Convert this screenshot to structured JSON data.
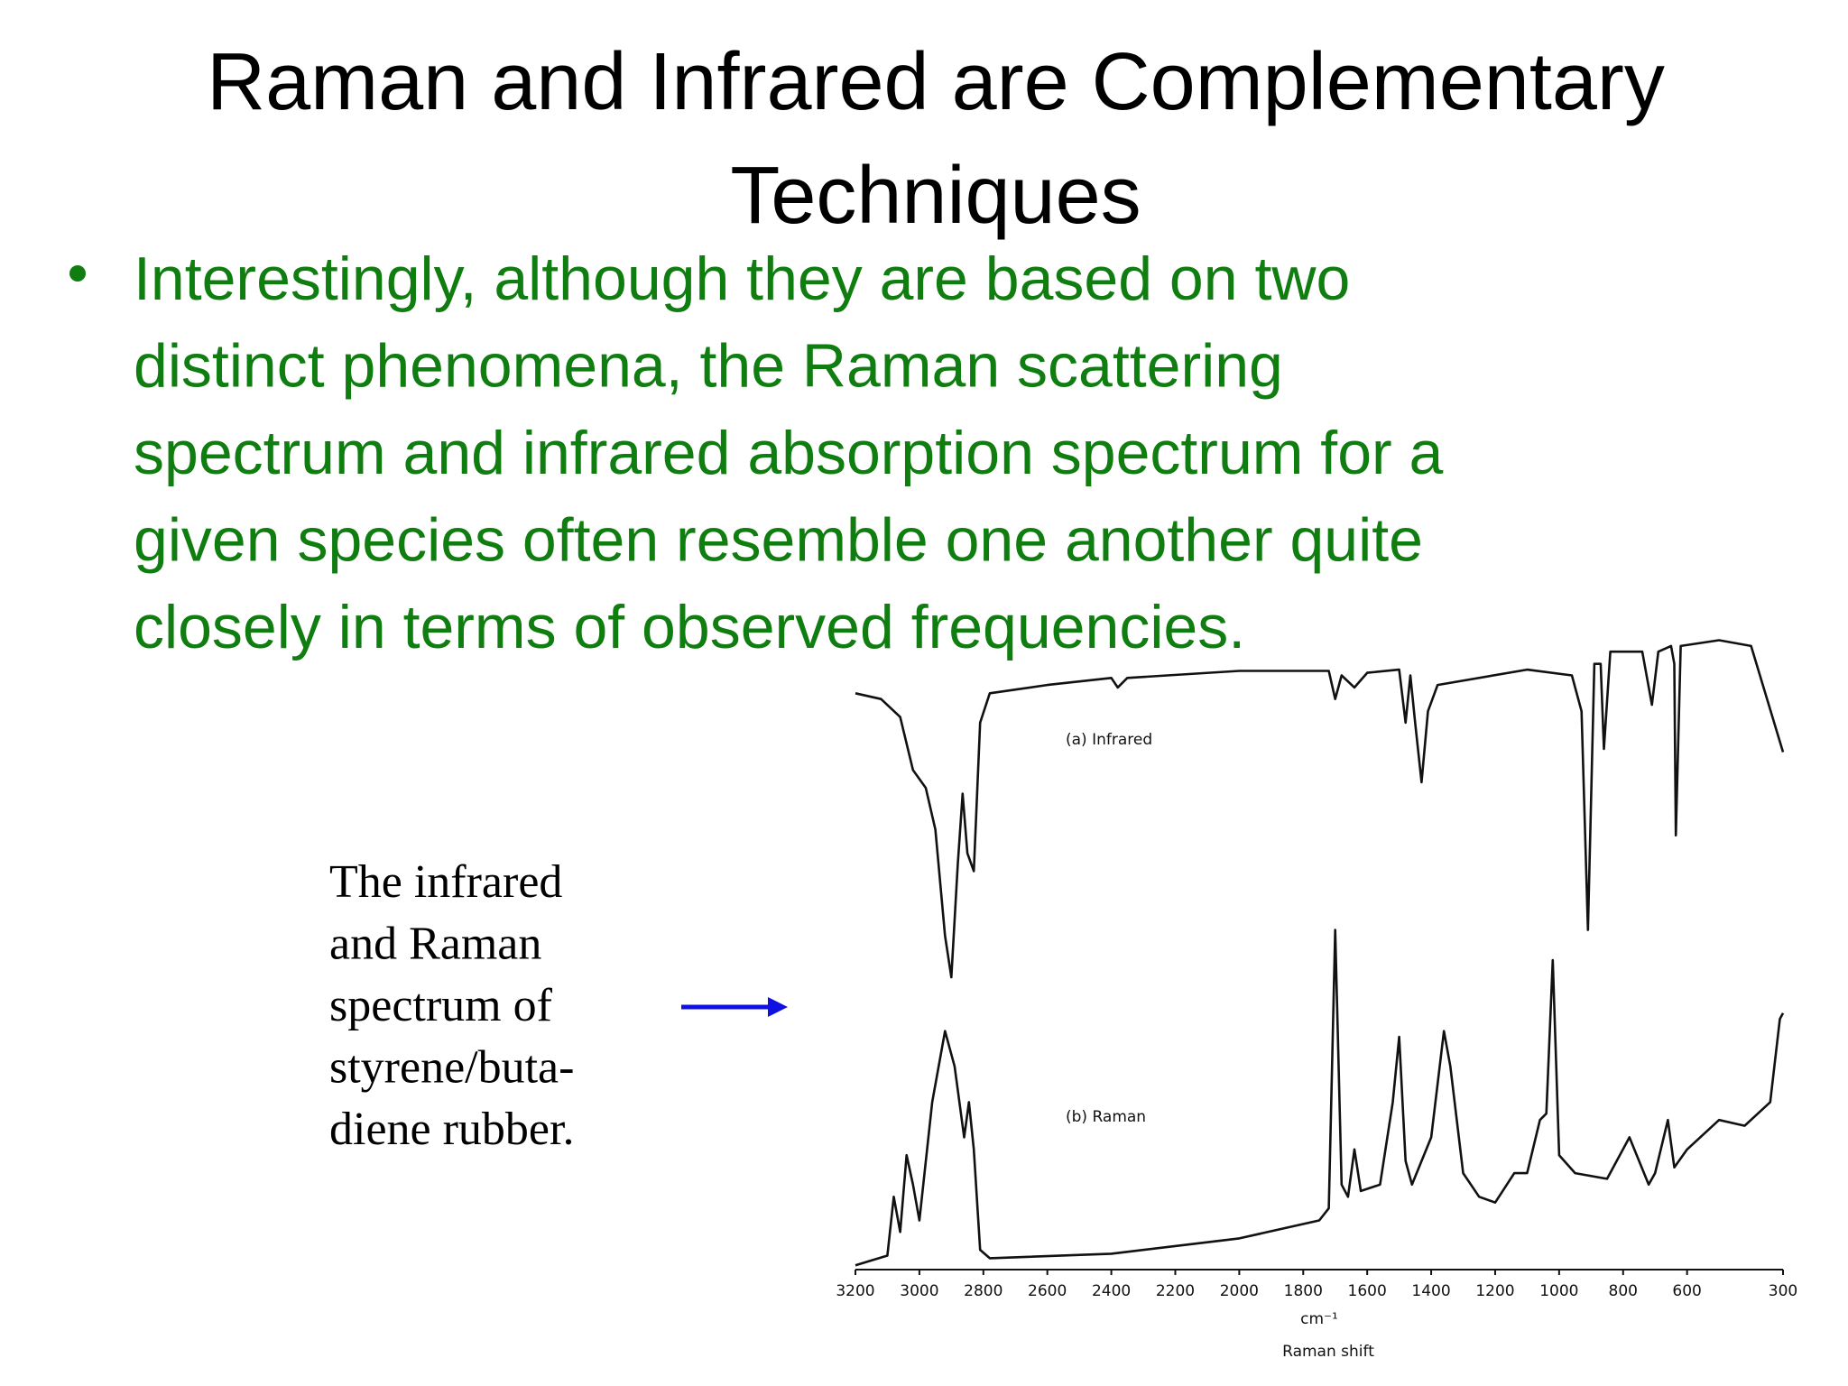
{
  "title": [
    "Raman and Infrared are Complementary",
    "Techniques"
  ],
  "bullet": [
    "Interestingly, although they are based on two",
    "distinct phenomena, the Raman scattering",
    "spectrum and infrared absorption spectrum for a",
    "given species often resemble one another quite",
    "closely in terms of observed frequencies."
  ],
  "caption": [
    "The infrared",
    "and Raman",
    "spectrum of",
    "styrene/buta-",
    "diene rubber."
  ],
  "chart_data": {
    "type": "line",
    "xlabel": "cm⁻¹",
    "x_caption": "Raman shift",
    "xlim": [
      3200,
      300
    ],
    "xticks": [
      3200,
      3000,
      2800,
      2600,
      2400,
      2200,
      2000,
      1800,
      1600,
      1400,
      1200,
      1000,
      800,
      600,
      300
    ],
    "ylim": [
      0,
      100
    ],
    "series": [
      {
        "name": "(a) Infrared",
        "color": "#111111",
        "x": [
          3200,
          3120,
          3060,
          3020,
          2980,
          2950,
          2920,
          2900,
          2880,
          2865,
          2850,
          2830,
          2810,
          2780,
          2600,
          2400,
          2380,
          2350,
          2000,
          1720,
          1700,
          1680,
          1640,
          1600,
          1500,
          1480,
          1465,
          1450,
          1430,
          1410,
          1380,
          1100,
          960,
          930,
          910,
          890,
          870,
          860,
          840,
          740,
          710,
          690,
          650,
          640,
          635,
          620,
          500,
          400,
          300
        ],
        "values": [
          89.8,
          88.9,
          86.1,
          77.8,
          75,
          68.5,
          51.9,
          45.4,
          63,
          74.1,
          64.8,
          62,
          85.2,
          89.8,
          91.1,
          92.2,
          90.7,
          92.2,
          93.3,
          93.3,
          88.9,
          92.6,
          90.7,
          93,
          93.5,
          85.2,
          92.6,
          85.2,
          75.9,
          87,
          91.1,
          93.5,
          92.6,
          87,
          52.8,
          94.4,
          94.4,
          81.1,
          96.3,
          96.3,
          88,
          96.3,
          97.2,
          94.4,
          67.6,
          97.2,
          98.1,
          97.2,
          80.6
        ]
      },
      {
        "name": "(b) Raman",
        "color": "#111111",
        "x": [
          3200,
          3100,
          3080,
          3060,
          3040,
          3020,
          3000,
          2960,
          2920,
          2890,
          2860,
          2845,
          2830,
          2810,
          2780,
          2400,
          2000,
          1750,
          1720,
          1700,
          1680,
          1660,
          1640,
          1620,
          1560,
          1520,
          1500,
          1480,
          1460,
          1400,
          1360,
          1340,
          1300,
          1250,
          1200,
          1140,
          1100,
          1060,
          1040,
          1020,
          1000,
          950,
          850,
          780,
          720,
          700,
          660,
          640,
          600,
          500,
          420,
          340,
          310,
          300
        ],
        "values": [
          0.4,
          1.9,
          11.1,
          5.6,
          17.6,
          13,
          7.4,
          25.9,
          37,
          31.5,
          20.4,
          25.9,
          18.5,
          2.8,
          1.5,
          2.2,
          4.6,
          7.4,
          9.3,
          52.8,
          13,
          11.1,
          18.5,
          12,
          13,
          25.9,
          36.1,
          16.7,
          13,
          20.4,
          37,
          31.5,
          14.8,
          11.1,
          10.2,
          14.8,
          14.8,
          23.1,
          24.1,
          48.1,
          17.6,
          14.8,
          13.9,
          20.4,
          13,
          14.8,
          23.1,
          15.7,
          18.5,
          23.1,
          22.2,
          25.9,
          38.9,
          39.8
        ]
      }
    ]
  }
}
